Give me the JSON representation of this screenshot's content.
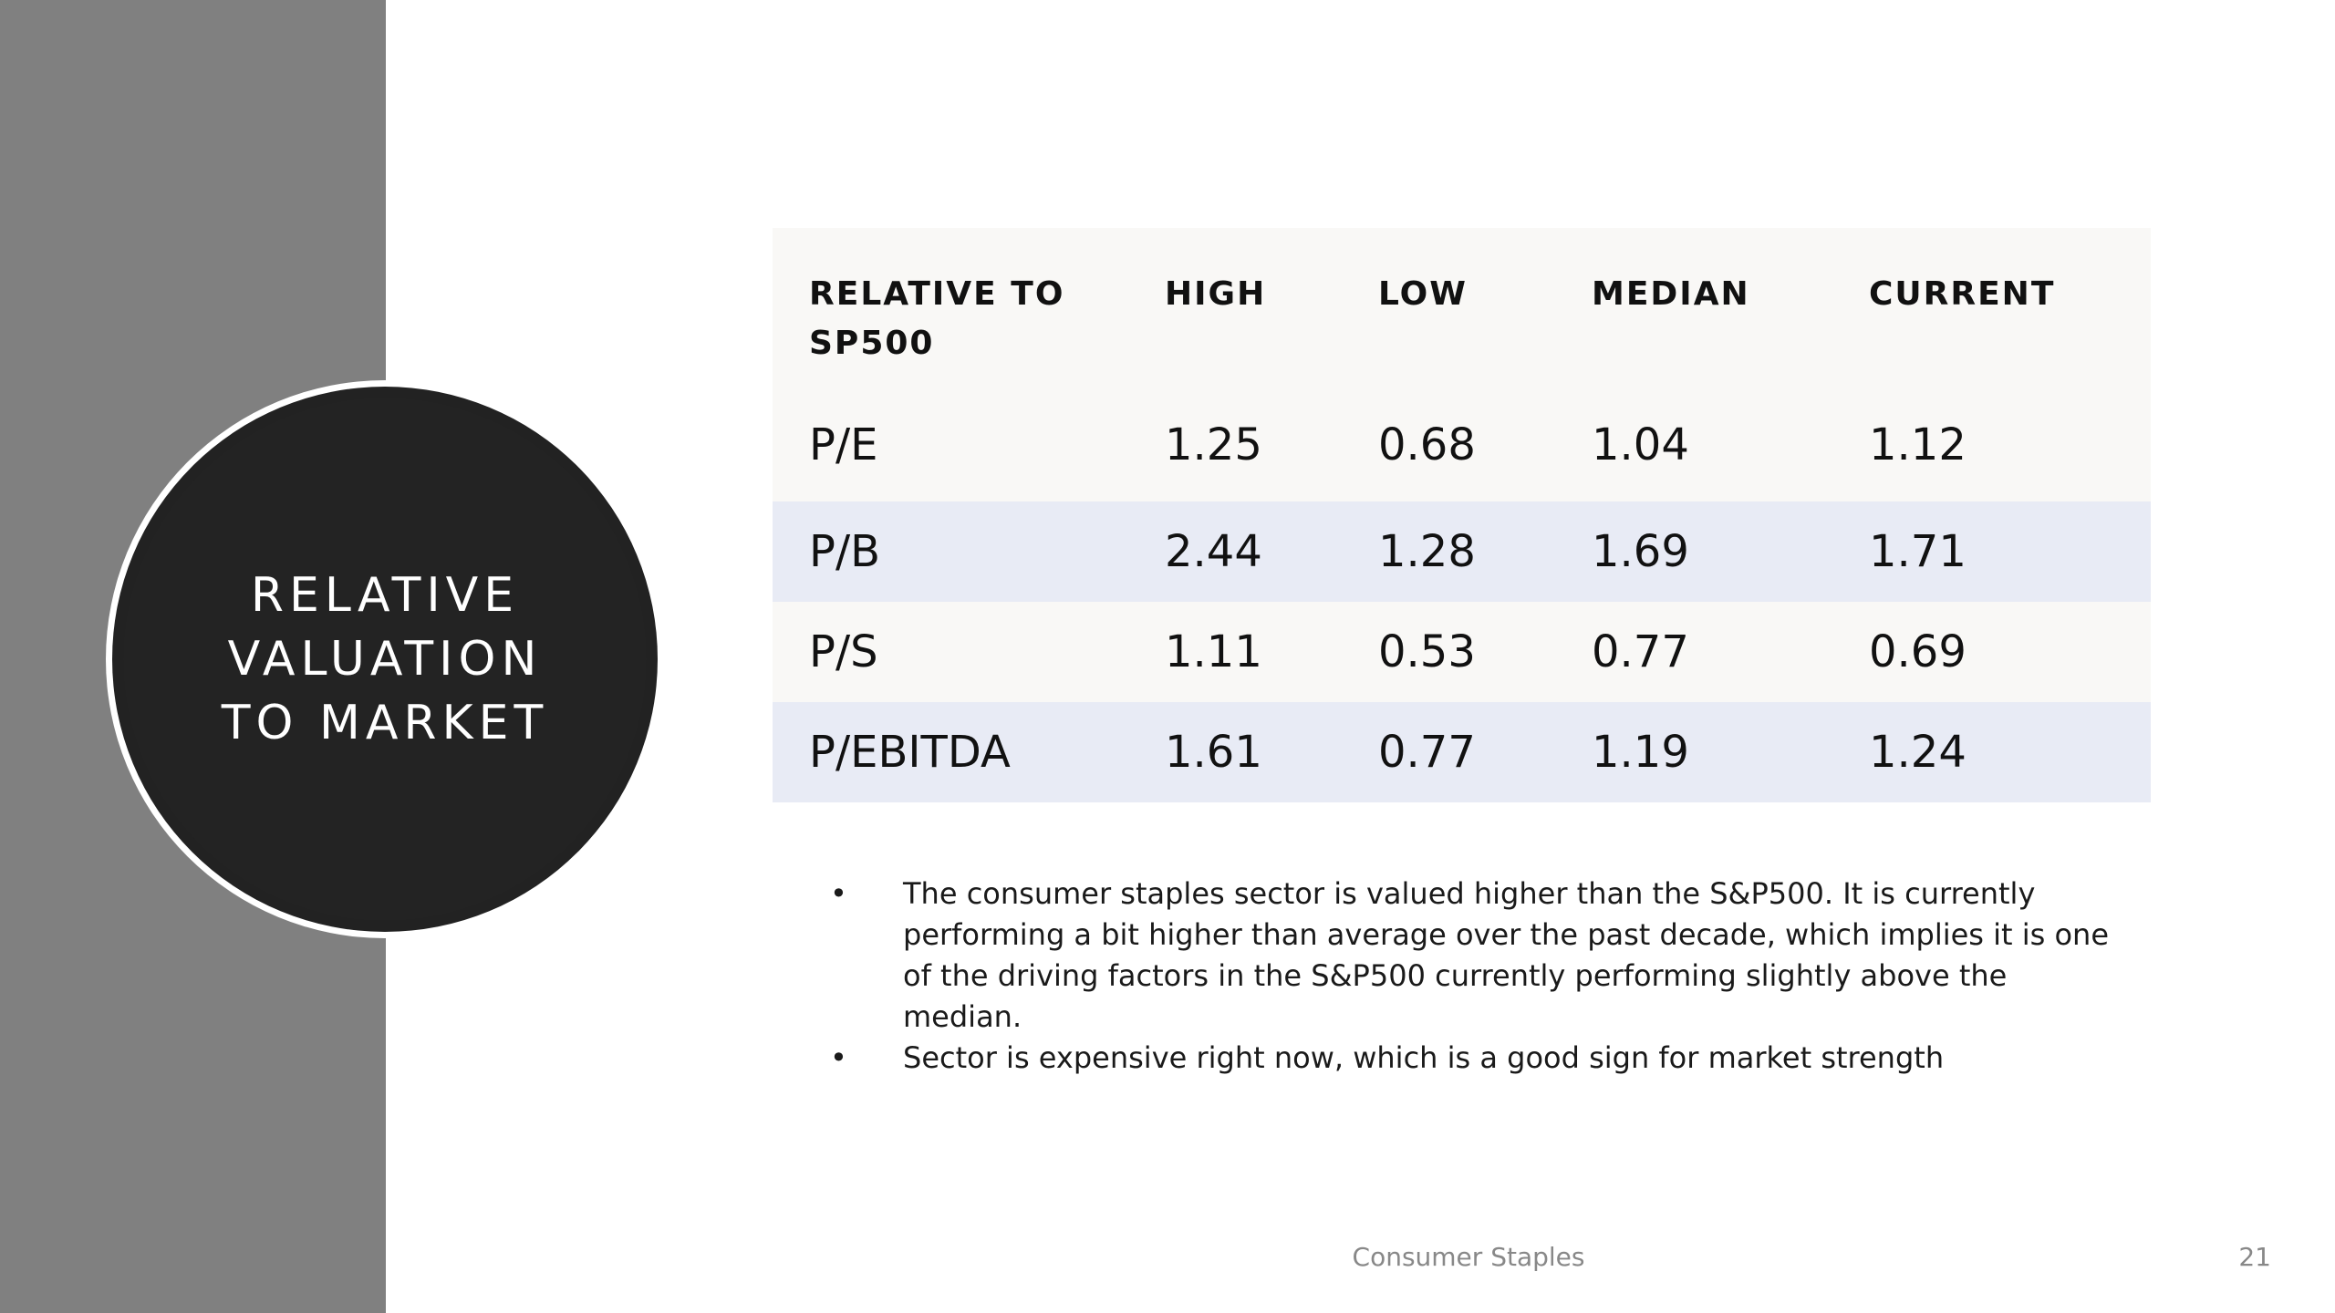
{
  "slide": {
    "title": "RELATIVE\nVALUATION\nTO MARKET",
    "footer_text": "Consumer Staples",
    "page_number": "21"
  },
  "table": {
    "headers": [
      "RELATIVE TO SP500",
      "HIGH",
      "LOW",
      "MEDIAN",
      "CURRENT"
    ],
    "rows": [
      [
        "P/E",
        "1.25",
        "0.68",
        "1.04",
        "1.12"
      ],
      [
        "P/B",
        "2.44",
        "1.28",
        "1.69",
        "1.71"
      ],
      [
        "P/S",
        "1.11",
        "0.53",
        "0.77",
        "0.69"
      ],
      [
        "P/EBITDA",
        "1.61",
        "0.77",
        "1.19",
        "1.24"
      ]
    ]
  },
  "notes": [
    "The consumer staples sector is valued higher than the S&P500.  It is currently performing a bit higher than average over the past decade, which implies it is one of the driving factors in the S&P500 currently performing slightly above the median.",
    "Sector is expensive right now, which is a good sign for market strength"
  ],
  "bullet_glyph": "•",
  "colors": {
    "left_band": "#808080",
    "circle": "#232323",
    "row_light": "#f9f8f6",
    "row_blue": "#e8ebf5"
  }
}
